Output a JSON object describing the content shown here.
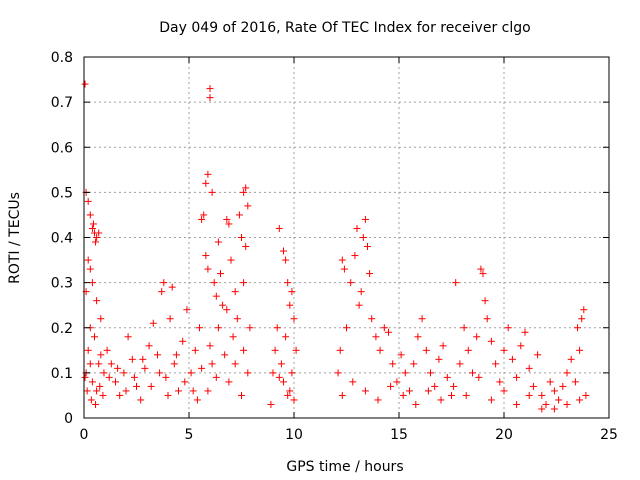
{
  "chart_data": {
    "type": "scatter",
    "title": "Day 049 of 2016, Rate Of TEC Index for receiver clgo",
    "xlabel": "GPS time / hours",
    "ylabel": "ROTI / TECUs",
    "xlim": [
      0,
      25
    ],
    "ylim": [
      0,
      0.8
    ],
    "xticks": [
      "0",
      "5",
      "10",
      "15",
      "20",
      "25"
    ],
    "yticks": [
      "0",
      "0.1",
      "0.2",
      "0.3",
      "0.4",
      "0.5",
      "0.6",
      "0.7",
      "0.8"
    ],
    "xtick_values": [
      0,
      5,
      10,
      15,
      20,
      25
    ],
    "ytick_values": [
      0,
      0.1,
      0.2,
      0.3,
      0.4,
      0.5,
      0.6,
      0.7,
      0.8
    ],
    "grid": true,
    "marker": "+",
    "color": "#ff0000",
    "series": [
      {
        "points": [
          [
            0.05,
            0.74
          ],
          [
            0.1,
            0.5
          ],
          [
            0.2,
            0.48
          ],
          [
            0.3,
            0.45
          ],
          [
            0.4,
            0.42
          ],
          [
            0.5,
            0.41
          ],
          [
            0.6,
            0.4
          ],
          [
            0.7,
            0.41
          ],
          [
            0.45,
            0.43
          ],
          [
            0.55,
            0.39
          ],
          [
            0.2,
            0.35
          ],
          [
            0.3,
            0.33
          ],
          [
            0.1,
            0.28
          ],
          [
            0.4,
            0.3
          ],
          [
            0.6,
            0.26
          ],
          [
            0.8,
            0.22
          ],
          [
            0.3,
            0.2
          ],
          [
            0.5,
            0.18
          ],
          [
            0.2,
            0.15
          ],
          [
            0.7,
            0.12
          ],
          [
            0.1,
            0.1
          ],
          [
            0.4,
            0.08
          ],
          [
            0.6,
            0.06
          ],
          [
            0.9,
            0.05
          ],
          [
            0.05,
            0.09
          ],
          [
            0.15,
            0.06
          ],
          [
            0.35,
            0.04
          ],
          [
            0.55,
            0.03
          ],
          [
            0.75,
            0.07
          ],
          [
            0.95,
            0.1
          ],
          [
            1.1,
            0.15
          ],
          [
            1.3,
            0.12
          ],
          [
            1.5,
            0.08
          ],
          [
            1.7,
            0.05
          ],
          [
            1.9,
            0.1
          ],
          [
            2.1,
            0.18
          ],
          [
            2.3,
            0.13
          ],
          [
            2.5,
            0.07
          ],
          [
            2.7,
            0.04
          ],
          [
            2.9,
            0.11
          ],
          [
            3.1,
            0.16
          ],
          [
            3.3,
            0.21
          ],
          [
            3.5,
            0.14
          ],
          [
            3.7,
            0.28
          ],
          [
            3.8,
            0.3
          ],
          [
            3.9,
            0.09
          ],
          [
            4.1,
            0.22
          ],
          [
            4.2,
            0.29
          ],
          [
            4.3,
            0.12
          ],
          [
            4.5,
            0.06
          ],
          [
            4.7,
            0.17
          ],
          [
            4.9,
            0.24
          ],
          [
            5.1,
            0.1
          ],
          [
            5.3,
            0.15
          ],
          [
            5.5,
            0.2
          ],
          [
            5.6,
            0.44
          ],
          [
            5.7,
            0.45
          ],
          [
            5.8,
            0.52
          ],
          [
            5.9,
            0.54
          ],
          [
            6.0,
            0.73
          ],
          [
            6.0,
            0.71
          ],
          [
            6.1,
            0.5
          ],
          [
            5.8,
            0.36
          ],
          [
            5.9,
            0.33
          ],
          [
            6.2,
            0.3
          ],
          [
            6.3,
            0.27
          ],
          [
            6.4,
            0.39
          ],
          [
            6.5,
            0.32
          ],
          [
            6.6,
            0.25
          ],
          [
            6.8,
            0.44
          ],
          [
            6.9,
            0.43
          ],
          [
            7.0,
            0.35
          ],
          [
            7.2,
            0.28
          ],
          [
            7.4,
            0.45
          ],
          [
            7.5,
            0.4
          ],
          [
            7.6,
            0.5
          ],
          [
            7.7,
            0.51
          ],
          [
            7.8,
            0.47
          ],
          [
            7.7,
            0.38
          ],
          [
            7.6,
            0.3
          ],
          [
            7.3,
            0.22
          ],
          [
            7.1,
            0.18
          ],
          [
            6.7,
            0.14
          ],
          [
            6.3,
            0.09
          ],
          [
            5.9,
            0.06
          ],
          [
            5.4,
            0.04
          ],
          [
            7.8,
            0.1
          ],
          [
            7.5,
            0.05
          ],
          [
            6.9,
            0.08
          ],
          [
            6.1,
            0.12
          ],
          [
            8.9,
            0.03
          ],
          [
            9.0,
            0.1
          ],
          [
            9.1,
            0.15
          ],
          [
            9.2,
            0.2
          ],
          [
            9.3,
            0.42
          ],
          [
            9.5,
            0.37
          ],
          [
            9.6,
            0.35
          ],
          [
            9.7,
            0.3
          ],
          [
            9.8,
            0.25
          ],
          [
            9.9,
            0.28
          ],
          [
            10.0,
            0.22
          ],
          [
            9.4,
            0.12
          ],
          [
            9.5,
            0.08
          ],
          [
            9.7,
            0.05
          ],
          [
            9.9,
            0.1
          ],
          [
            10.1,
            0.15
          ],
          [
            9.6,
            0.18
          ],
          [
            9.8,
            0.06
          ],
          [
            9.3,
            0.09
          ],
          [
            10.0,
            0.04
          ],
          [
            12.1,
            0.1
          ],
          [
            12.2,
            0.15
          ],
          [
            12.3,
            0.35
          ],
          [
            12.4,
            0.33
          ],
          [
            12.5,
            0.2
          ],
          [
            12.7,
            0.3
          ],
          [
            12.9,
            0.36
          ],
          [
            13.0,
            0.42
          ],
          [
            13.1,
            0.25
          ],
          [
            13.2,
            0.28
          ],
          [
            13.3,
            0.4
          ],
          [
            13.4,
            0.44
          ],
          [
            13.5,
            0.38
          ],
          [
            13.6,
            0.32
          ],
          [
            13.7,
            0.22
          ],
          [
            13.9,
            0.18
          ],
          [
            14.1,
            0.15
          ],
          [
            14.3,
            0.2
          ],
          [
            14.5,
            0.19
          ],
          [
            14.7,
            0.12
          ],
          [
            14.9,
            0.08
          ],
          [
            15.1,
            0.14
          ],
          [
            15.3,
            0.1
          ],
          [
            15.5,
            0.06
          ],
          [
            15.7,
            0.12
          ],
          [
            15.9,
            0.18
          ],
          [
            16.1,
            0.22
          ],
          [
            16.3,
            0.15
          ],
          [
            16.5,
            0.1
          ],
          [
            16.7,
            0.07
          ],
          [
            16.9,
            0.13
          ],
          [
            17.1,
            0.16
          ],
          [
            17.3,
            0.09
          ],
          [
            17.5,
            0.05
          ],
          [
            17.7,
            0.3
          ],
          [
            17.9,
            0.12
          ],
          [
            18.1,
            0.2
          ],
          [
            18.3,
            0.15
          ],
          [
            18.5,
            0.1
          ],
          [
            18.7,
            0.18
          ],
          [
            18.9,
            0.33
          ],
          [
            19.0,
            0.32
          ],
          [
            19.1,
            0.26
          ],
          [
            19.2,
            0.22
          ],
          [
            19.4,
            0.17
          ],
          [
            19.6,
            0.12
          ],
          [
            19.8,
            0.08
          ],
          [
            20.0,
            0.15
          ],
          [
            20.2,
            0.2
          ],
          [
            20.4,
            0.13
          ],
          [
            20.6,
            0.09
          ],
          [
            20.8,
            0.16
          ],
          [
            21.0,
            0.19
          ],
          [
            21.2,
            0.11
          ],
          [
            21.4,
            0.07
          ],
          [
            21.6,
            0.14
          ],
          [
            21.8,
            0.05
          ],
          [
            22.0,
            0.03
          ],
          [
            22.2,
            0.08
          ],
          [
            22.4,
            0.06
          ],
          [
            22.6,
            0.04
          ],
          [
            22.8,
            0.07
          ],
          [
            23.0,
            0.1
          ],
          [
            23.2,
            0.13
          ],
          [
            23.4,
            0.08
          ],
          [
            23.5,
            0.2
          ],
          [
            23.6,
            0.15
          ],
          [
            23.7,
            0.22
          ],
          [
            23.8,
            0.24
          ],
          [
            23.9,
            0.05
          ],
          [
            12.3,
            0.05
          ],
          [
            12.8,
            0.08
          ],
          [
            13.4,
            0.06
          ],
          [
            14.0,
            0.04
          ],
          [
            14.6,
            0.07
          ],
          [
            15.2,
            0.05
          ],
          [
            15.8,
            0.03
          ],
          [
            16.4,
            0.06
          ],
          [
            17.0,
            0.04
          ],
          [
            17.6,
            0.07
          ],
          [
            18.2,
            0.05
          ],
          [
            18.8,
            0.09
          ],
          [
            19.4,
            0.04
          ],
          [
            20.0,
            0.06
          ],
          [
            20.6,
            0.03
          ],
          [
            21.2,
            0.05
          ],
          [
            21.8,
            0.02
          ],
          [
            22.4,
            0.02
          ],
          [
            23.0,
            0.03
          ],
          [
            23.6,
            0.04
          ],
          [
            0.3,
            0.12
          ],
          [
            0.8,
            0.14
          ],
          [
            1.2,
            0.09
          ],
          [
            1.6,
            0.11
          ],
          [
            2.0,
            0.06
          ],
          [
            2.4,
            0.09
          ],
          [
            2.8,
            0.13
          ],
          [
            3.2,
            0.07
          ],
          [
            3.6,
            0.1
          ],
          [
            4.0,
            0.05
          ],
          [
            4.4,
            0.14
          ],
          [
            4.8,
            0.08
          ],
          [
            5.2,
            0.06
          ],
          [
            5.6,
            0.11
          ],
          [
            6.0,
            0.16
          ],
          [
            6.4,
            0.2
          ],
          [
            6.8,
            0.24
          ],
          [
            7.2,
            0.12
          ],
          [
            7.6,
            0.15
          ],
          [
            7.9,
            0.2
          ]
        ]
      }
    ]
  }
}
